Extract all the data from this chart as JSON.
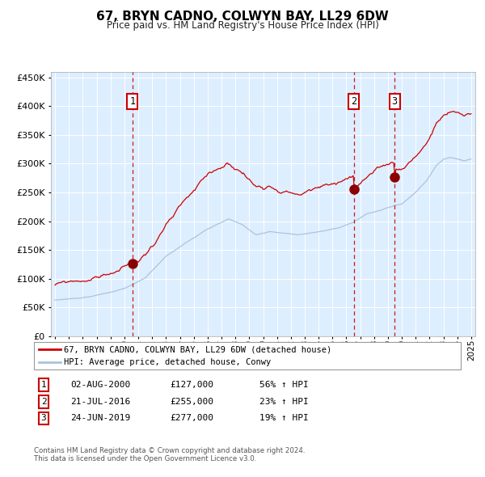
{
  "title": "67, BRYN CADNO, COLWYN BAY, LL29 6DW",
  "subtitle": "Price paid vs. HM Land Registry's House Price Index (HPI)",
  "legend_line1": "67, BRYN CADNO, COLWYN BAY, LL29 6DW (detached house)",
  "legend_line2": "HPI: Average price, detached house, Conwy",
  "footer1": "Contains HM Land Registry data © Crown copyright and database right 2024.",
  "footer2": "This data is licensed under the Open Government Licence v3.0.",
  "transactions": [
    {
      "num": 1,
      "date": "02-AUG-2000",
      "price": 127000,
      "pct": "56%",
      "dir": "↑",
      "rel": "HPI"
    },
    {
      "num": 2,
      "date": "21-JUL-2016",
      "price": 255000,
      "pct": "23%",
      "dir": "↑",
      "rel": "HPI"
    },
    {
      "num": 3,
      "date": "24-JUN-2019",
      "price": 277000,
      "pct": "19%",
      "dir": "↑",
      "rel": "HPI"
    }
  ],
  "transaction_dates_decimal": [
    2000.584,
    2016.549,
    2019.479
  ],
  "transaction_prices": [
    127000,
    255000,
    277000
  ],
  "dashed_line_color": "#cc0000",
  "sale_marker_color": "#8b0000",
  "hpi_line_color": "#aac4dd",
  "price_line_color": "#cc0000",
  "plot_bg_color": "#ddeeff",
  "ylim": [
    0,
    460000
  ],
  "yticks": [
    0,
    50000,
    100000,
    150000,
    200000,
    250000,
    300000,
    350000,
    400000,
    450000
  ],
  "start_year": 1995,
  "end_year": 2025,
  "grid_color": "#ffffff",
  "box_color": "#cc0000"
}
